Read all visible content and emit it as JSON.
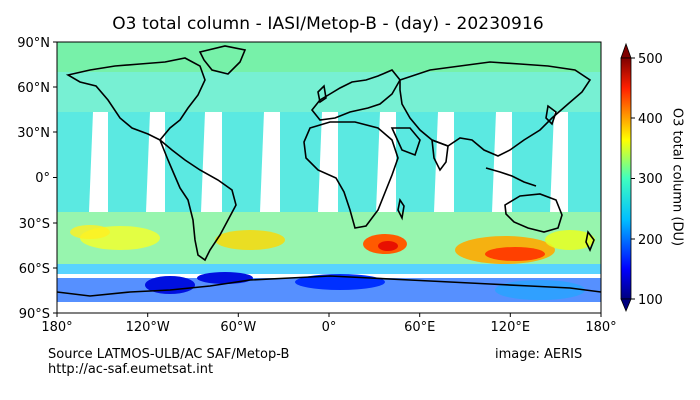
{
  "title": "O3 total column - IASI/Metop-B - (day) - 20230916",
  "lat_ticks": [
    "90°N",
    "60°N",
    "30°N",
    "0°",
    "30°S",
    "60°S",
    "90°S"
  ],
  "lon_ticks": [
    "180°",
    "120°W",
    "60°W",
    "0°",
    "60°E",
    "120°E",
    "180°"
  ],
  "colorbar": {
    "label": "O3 total column (DU)",
    "ticks": [
      "500",
      "400",
      "300",
      "200",
      "100"
    ],
    "min": 100,
    "max": 500,
    "colors": [
      "#00007f",
      "#0000ff",
      "#007fff",
      "#00ffff",
      "#7fff7f",
      "#ffff00",
      "#ff7f00",
      "#ff0000",
      "#7f0000"
    ]
  },
  "source": {
    "line1": "Source LATMOS-ULB/AC SAF/Metop-B",
    "line2": "http://ac-saf.eumetsat.int"
  },
  "credit": "image: AERIS"
}
